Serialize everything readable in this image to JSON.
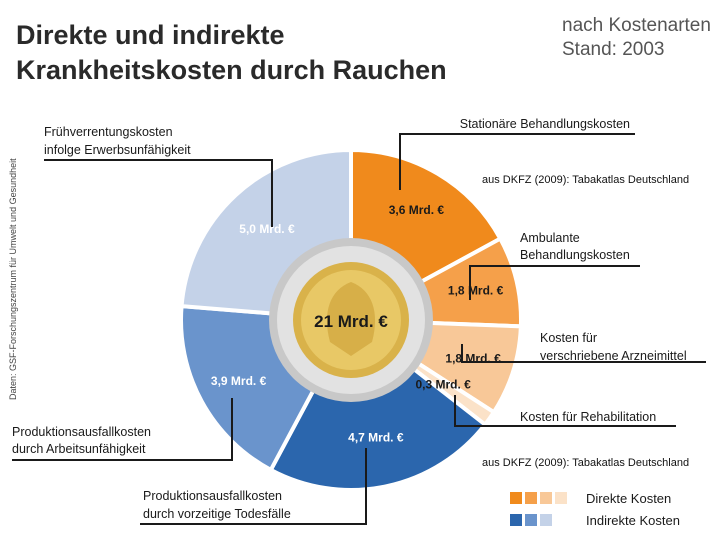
{
  "title_line1": "Direkte und indirekte",
  "title_line2": "Krankheitskosten durch Rauchen",
  "subtitle_line1": "nach Kostenarten",
  "subtitle_line2": "Stand: 2003",
  "source_vertical": "Daten: GSF-Forschungszentrum für Umwelt und Gesundheit",
  "credit_text": "aus DKFZ (2009): Tabakatlas Deutschland",
  "colors": {
    "direct_1": "#f08a1c",
    "direct_2": "#f5a04a",
    "direct_3": "#f8c898",
    "direct_4": "#fbe2c8",
    "indirect_1": "#2b66ad",
    "indirect_2": "#6a94cc",
    "indirect_3": "#c4d2e8"
  },
  "chart_data": {
    "type": "pie",
    "title": "Direkte und indirekte Krankheitskosten durch Rauchen",
    "subtitle": "nach Kostenarten Stand: 2003",
    "total_label": "21 Mrd. €",
    "legend_placement": "bottom-right",
    "legend": [
      {
        "label": "Direkte Kosten",
        "colors": [
          "#f08a1c",
          "#f5a04a",
          "#f8c898",
          "#fbe2c8"
        ]
      },
      {
        "label": "Indirekte Kosten",
        "colors": [
          "#2b66ad",
          "#6a94cc",
          "#c4d2e8"
        ]
      }
    ],
    "slices": [
      {
        "name_lines": [
          "Stationäre Behandlungskosten"
        ],
        "value": 3.6,
        "value_label": "3,6 Mrd. €",
        "group": "direct",
        "color": "#f08a1c",
        "value_color": "#1a1a1a"
      },
      {
        "name_lines": [
          "Ambulante",
          "Behandlungskosten"
        ],
        "value": 1.8,
        "value_label": "1,8 Mrd. €",
        "group": "direct",
        "color": "#f5a04a",
        "value_color": "#1a1a1a"
      },
      {
        "name_lines": [
          "Kosten für",
          "verschriebene Arzneimittel"
        ],
        "value": 1.8,
        "value_label": "1,8 Mrd. €",
        "group": "direct",
        "color": "#f8c898",
        "value_color": "#1a1a1a"
      },
      {
        "name_lines": [
          "Kosten für Rehabilitation"
        ],
        "value": 0.3,
        "value_label": "0,3 Mrd. €",
        "group": "direct",
        "color": "#fbe2c8",
        "value_color": "#1a1a1a"
      },
      {
        "name_lines": [
          "Produktionsausfallkosten",
          "durch vorzeitige Todesfälle"
        ],
        "value": 4.7,
        "value_label": "4,7 Mrd. €",
        "group": "indirect",
        "color": "#2b66ad",
        "value_color": "#ffffff"
      },
      {
        "name_lines": [
          "Produktionsausfallkosten",
          "durch Arbeitsunfähigkeit"
        ],
        "value": 3.9,
        "value_label": "3,9 Mrd. €",
        "group": "indirect",
        "color": "#6a94cc",
        "value_color": "#ffffff"
      },
      {
        "name_lines": [
          "Frühverrentungskosten",
          "infolge Erwerbsunfähigkeit"
        ],
        "value": 5.0,
        "value_label": "5,0 Mrd. €",
        "group": "indirect",
        "color": "#c4d2e8",
        "value_color": "#ffffff"
      }
    ]
  }
}
